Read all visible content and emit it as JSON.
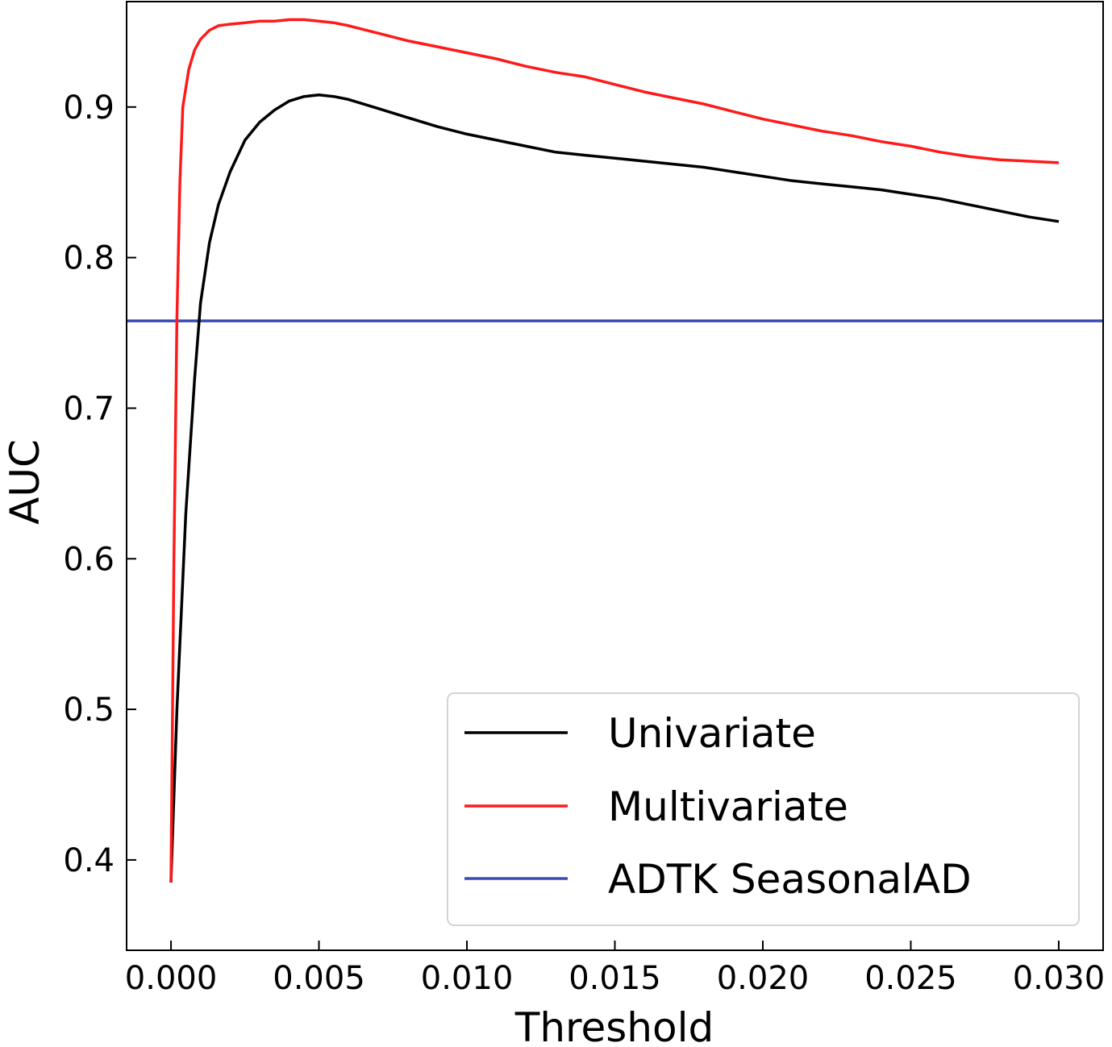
{
  "chart_data": {
    "type": "line",
    "title": "",
    "xlabel": "Threshold",
    "ylabel": "AUC",
    "xlim": [
      -0.0015,
      0.0315
    ],
    "ylim": [
      0.34,
      0.97
    ],
    "xticks": [
      0.0,
      0.005,
      0.01,
      0.015,
      0.02,
      0.025,
      0.03
    ],
    "xtick_labels": [
      "0.000",
      "0.005",
      "0.010",
      "0.015",
      "0.020",
      "0.025",
      "0.030"
    ],
    "yticks": [
      0.4,
      0.5,
      0.6,
      0.7,
      0.8,
      0.9
    ],
    "ytick_labels": [
      "0.4",
      "0.5",
      "0.6",
      "0.7",
      "0.8",
      "0.9"
    ],
    "grid": false,
    "legend_position": "bottom-right",
    "series": [
      {
        "name": "Univariate",
        "color": "#000000",
        "x": [
          0.0,
          0.0002,
          0.0005,
          0.0008,
          0.001,
          0.0013,
          0.0016,
          0.002,
          0.0025,
          0.003,
          0.0035,
          0.004,
          0.0045,
          0.005,
          0.0055,
          0.006,
          0.007,
          0.008,
          0.009,
          0.01,
          0.011,
          0.012,
          0.013,
          0.014,
          0.015,
          0.016,
          0.017,
          0.018,
          0.019,
          0.02,
          0.021,
          0.022,
          0.023,
          0.024,
          0.025,
          0.026,
          0.027,
          0.028,
          0.029,
          0.03
        ],
        "values": [
          0.385,
          0.5,
          0.63,
          0.72,
          0.77,
          0.81,
          0.835,
          0.857,
          0.878,
          0.89,
          0.898,
          0.904,
          0.907,
          0.908,
          0.907,
          0.905,
          0.899,
          0.893,
          0.887,
          0.882,
          0.878,
          0.874,
          0.87,
          0.868,
          0.866,
          0.864,
          0.862,
          0.86,
          0.857,
          0.854,
          0.851,
          0.849,
          0.847,
          0.845,
          0.842,
          0.839,
          0.835,
          0.831,
          0.827,
          0.824
        ]
      },
      {
        "name": "Multivariate",
        "color": "#ff1a1a",
        "x": [
          0.0,
          0.0001,
          0.0002,
          0.0003,
          0.0004,
          0.0006,
          0.0008,
          0.001,
          0.0013,
          0.0016,
          0.002,
          0.0025,
          0.003,
          0.0035,
          0.004,
          0.0045,
          0.005,
          0.0055,
          0.006,
          0.007,
          0.008,
          0.009,
          0.01,
          0.011,
          0.012,
          0.013,
          0.014,
          0.015,
          0.016,
          0.017,
          0.018,
          0.019,
          0.02,
          0.021,
          0.022,
          0.023,
          0.024,
          0.025,
          0.026,
          0.027,
          0.028,
          0.029,
          0.03
        ],
        "values": [
          0.385,
          0.6,
          0.76,
          0.85,
          0.9,
          0.925,
          0.938,
          0.945,
          0.951,
          0.954,
          0.955,
          0.956,
          0.957,
          0.957,
          0.958,
          0.958,
          0.957,
          0.956,
          0.954,
          0.949,
          0.944,
          0.94,
          0.936,
          0.932,
          0.927,
          0.923,
          0.92,
          0.915,
          0.91,
          0.906,
          0.902,
          0.897,
          0.892,
          0.888,
          0.884,
          0.881,
          0.877,
          0.874,
          0.87,
          0.867,
          0.865,
          0.864,
          0.863
        ]
      },
      {
        "name": "ADTK SeasonalAD",
        "color": "#3a4ab5",
        "x": [
          -0.0015,
          0.0315
        ],
        "values": [
          0.758,
          0.758
        ]
      }
    ]
  }
}
